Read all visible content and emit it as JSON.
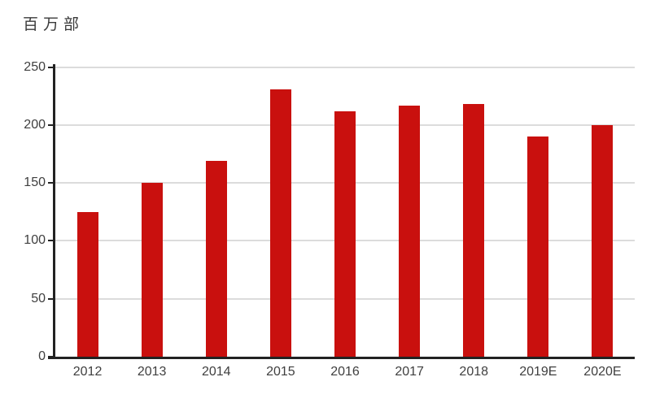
{
  "chart_data": {
    "type": "bar",
    "title": "",
    "unit_label": "百万部",
    "categories": [
      "2012",
      "2013",
      "2014",
      "2015",
      "2016",
      "2017",
      "2018",
      "2019E",
      "2020E"
    ],
    "values": [
      125,
      150,
      169,
      231,
      212,
      217,
      218,
      190,
      200
    ],
    "ylim": [
      0,
      250
    ],
    "yticks": [
      0,
      50,
      100,
      150,
      200,
      250
    ],
    "grid": "horizontal",
    "legend_position": "none",
    "bar_color": "#c9100e",
    "axis_color": "#222222",
    "gridline_color": "#dcdcdc",
    "tick_label_color": "#3f3f3f"
  }
}
